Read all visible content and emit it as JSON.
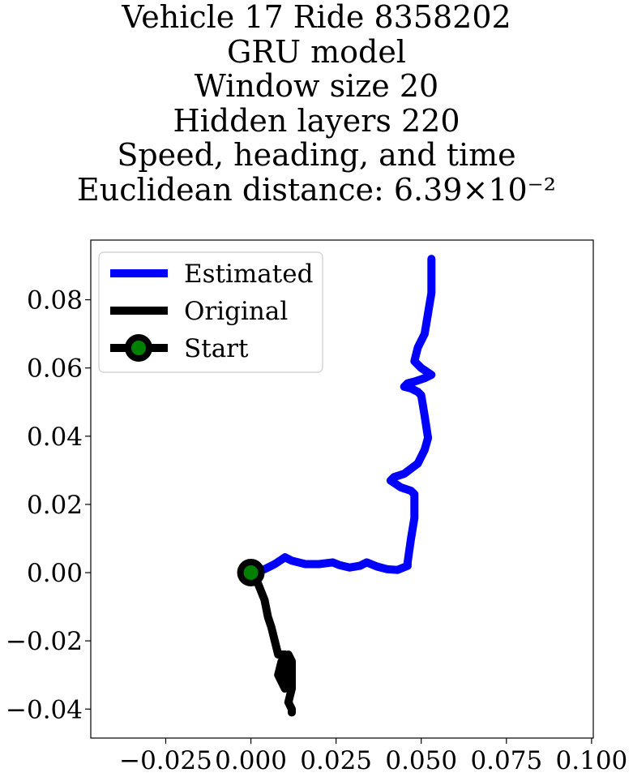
{
  "chart_data": {
    "type": "line",
    "title_lines": [
      "Vehicle 17 Ride 8358202",
      "GRU model",
      "Window size 20",
      "Hidden layers 220",
      "Speed, heading, and time",
      "Euclidean distance: 6.39×10⁻²"
    ],
    "xlabel": "",
    "ylabel": "",
    "xlim": [
      -0.047,
      0.1005
    ],
    "ylim": [
      -0.0485,
      0.0975
    ],
    "x_ticks": [
      -0.025,
      0.0,
      0.025,
      0.05,
      0.075,
      0.1
    ],
    "x_tick_labels": [
      "−0.025",
      "0.000",
      "0.025",
      "0.050",
      "0.075",
      "0.100"
    ],
    "y_ticks": [
      0.08,
      0.06,
      0.04,
      0.02,
      0.0,
      -0.02,
      -0.04
    ],
    "y_tick_labels": [
      "0.08",
      "0.06",
      "0.04",
      "0.02",
      "0.00",
      "−0.02",
      "−0.04"
    ],
    "grid": false,
    "legend_position": "upper-left",
    "legend": [
      {
        "label": "Estimated",
        "color": "#0000ff"
      },
      {
        "label": "Original",
        "color": "#000000"
      },
      {
        "label": "Start",
        "color": "#000000",
        "marker_color": "#008000"
      }
    ],
    "series": [
      {
        "name": "Estimated",
        "color": "#0000ff",
        "points": [
          [
            0.0,
            0.0
          ],
          [
            0.004,
            0.001
          ],
          [
            0.007,
            0.0025
          ],
          [
            0.01,
            0.0045
          ],
          [
            0.012,
            0.0035
          ],
          [
            0.016,
            0.0025
          ],
          [
            0.02,
            0.0025
          ],
          [
            0.024,
            0.003
          ],
          [
            0.026,
            0.0022
          ],
          [
            0.029,
            0.0015
          ],
          [
            0.032,
            0.002
          ],
          [
            0.034,
            0.003
          ],
          [
            0.037,
            0.0018
          ],
          [
            0.04,
            0.001
          ],
          [
            0.043,
            0.0008
          ],
          [
            0.046,
            0.002
          ],
          [
            0.046,
            0.003
          ],
          [
            0.047,
            0.01
          ],
          [
            0.048,
            0.016
          ],
          [
            0.048,
            0.023
          ],
          [
            0.047,
            0.024
          ],
          [
            0.044,
            0.025
          ],
          [
            0.041,
            0.027
          ],
          [
            0.042,
            0.028
          ],
          [
            0.045,
            0.029
          ],
          [
            0.049,
            0.032
          ],
          [
            0.051,
            0.036
          ],
          [
            0.052,
            0.0395
          ],
          [
            0.051,
            0.046
          ],
          [
            0.05,
            0.052
          ],
          [
            0.049,
            0.053
          ],
          [
            0.047,
            0.054
          ],
          [
            0.045,
            0.0545
          ],
          [
            0.046,
            0.0555
          ],
          [
            0.048,
            0.056
          ],
          [
            0.051,
            0.057
          ],
          [
            0.053,
            0.058
          ],
          [
            0.05,
            0.06
          ],
          [
            0.048,
            0.062
          ],
          [
            0.049,
            0.066
          ],
          [
            0.051,
            0.07
          ],
          [
            0.052,
            0.076
          ],
          [
            0.053,
            0.082
          ],
          [
            0.053,
            0.088
          ],
          [
            0.053,
            0.092
          ]
        ]
      },
      {
        "name": "Original",
        "color": "#000000",
        "points": [
          [
            0.0,
            0.0
          ],
          [
            0.002,
            -0.003
          ],
          [
            0.004,
            -0.008
          ],
          [
            0.005,
            -0.013
          ],
          [
            0.006,
            -0.016
          ],
          [
            0.007,
            -0.02
          ],
          [
            0.008,
            -0.024
          ],
          [
            0.01,
            -0.024
          ],
          [
            0.011,
            -0.026
          ],
          [
            0.01,
            -0.03
          ],
          [
            0.01,
            -0.034
          ],
          [
            0.009,
            -0.032
          ],
          [
            0.008,
            -0.03
          ],
          [
            0.009,
            -0.026
          ],
          [
            0.011,
            -0.024
          ],
          [
            0.012,
            -0.026
          ],
          [
            0.012,
            -0.03
          ],
          [
            0.012,
            -0.034
          ],
          [
            0.011,
            -0.038
          ],
          [
            0.012,
            -0.04
          ],
          [
            0.012,
            -0.041
          ]
        ]
      }
    ],
    "start": {
      "x": 0.0,
      "y": 0.0,
      "outer_color": "#000000",
      "inner_color": "#008000"
    }
  }
}
